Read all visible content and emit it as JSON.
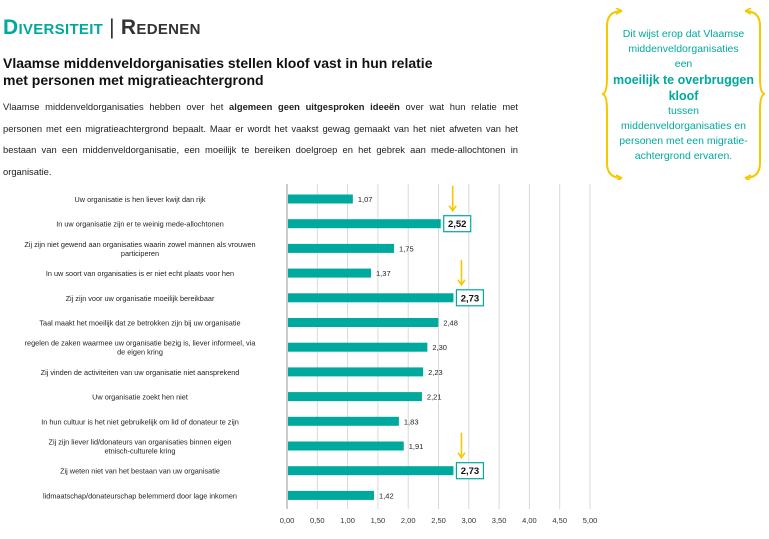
{
  "header": {
    "title_part1": "Diversiteit",
    "separator": "|",
    "title_part2": "Redenen"
  },
  "subtitle": "Vlaamse middenveldorganisaties stellen kloof vast in hun relatie met personen met migratieachtergrond",
  "intro": {
    "before": "Vlaamse middenveldorganisaties hebben over het ",
    "bold": "algemeen geen uitgesproken ideeën",
    "after": " over wat hun relatie met personen met een migratieachtergrond bepaalt. Maar er wordt het vaakst gewag gemaakt van het niet afweten van het bestaan van een middenveldorganisatie, een moeilijk te bereiken doelgroep en het gebrek aan mede-allochtonen in organisatie."
  },
  "callout": {
    "line1": "Dit wijst erop dat Vlaamse middenveldorganisaties",
    "line2": "een",
    "emphasis": "moeilijk te overbruggen kloof",
    "line3": "tussen middenveldorganisaties en personen met een migratie-achtergrond ervaren."
  },
  "colors": {
    "accent": "#00a99d",
    "arrow": "#f5c800",
    "highlight_border": "#00a99d"
  },
  "chart_data": {
    "type": "bar",
    "orientation": "horizontal",
    "categories": [
      "Uw organisatie is hen liever kwijt dan rijk",
      "In uw organisatie zijn er te weinig mede-allochtonen",
      "Zij zijn niet gewend aan organisaties waarin zowel mannen als vrouwen participeren",
      "In uw soort van organisaties is er niet echt plaats voor hen",
      "Zij zijn voor uw organisatie moeilijk bereikbaar",
      "Taal maakt het moeilijk dat ze betrokken zijn bij uw organisatie",
      "regelen de zaken waarmee uw organisatie bezig is, liever informeel, via de eigen kring",
      "Zij vinden de activiteiten van uw organisatie niet aansprekend",
      "Uw organisatie zoekt hen niet",
      "In hun cultuur is het niet gebruikelijk om lid of donateur te zijn",
      "Zij zijn liever lid/donateurs van organisaties binnen eigen etnisch-culturele kring",
      "Zij weten niet van het bestaan van uw organisatie",
      "lidmaatschap/donateurschap belemmerd door lage inkomen"
    ],
    "values": [
      1.07,
      2.52,
      1.75,
      1.37,
      2.73,
      2.48,
      2.3,
      2.23,
      2.21,
      1.83,
      1.91,
      2.73,
      1.42
    ],
    "value_labels": [
      "1,07",
      "2,52",
      "1,75",
      "1,37",
      "2,73",
      "2,48",
      "2,30",
      "2,23",
      "2,21",
      "1,83",
      "1,91",
      "2,73",
      "1,42"
    ],
    "highlighted": [
      1,
      4,
      11
    ],
    "xlim": [
      0,
      5
    ],
    "ticks": [
      0,
      0.5,
      1,
      1.5,
      2,
      2.5,
      3,
      3.5,
      4,
      4.5,
      5
    ],
    "tick_labels": [
      "0,00",
      "0,50",
      "1,00",
      "1,50",
      "2,00",
      "2,50",
      "3,00",
      "3,50",
      "4,00",
      "4,50",
      "5,00"
    ],
    "grid": "vertical",
    "bar_color": "#00a99d"
  }
}
